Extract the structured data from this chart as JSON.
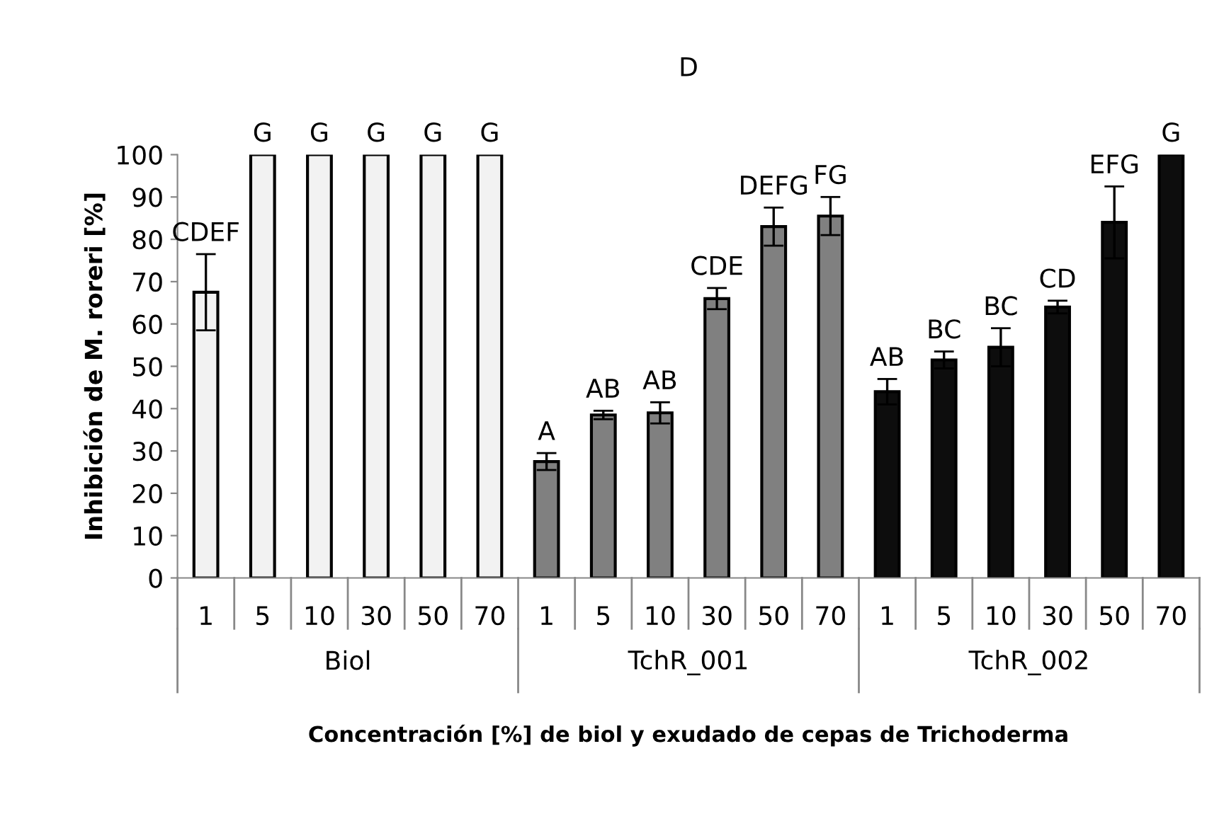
{
  "chart_data": {
    "type": "bar",
    "title": "D",
    "ylabel": "Inhibición de M. roreri [%]",
    "xlabel": "Concentración [%] de biol y exudado de cepas de Trichoderma",
    "categories": [
      "1",
      "5",
      "10",
      "30",
      "50",
      "70",
      "1",
      "5",
      "10",
      "30",
      "50",
      "70",
      "1",
      "5",
      "10",
      "30",
      "50",
      "70"
    ],
    "values": [
      67.5,
      100,
      100,
      100,
      100,
      100,
      27.5,
      38.5,
      39,
      66,
      83,
      85.5,
      44,
      51.5,
      54.5,
      64,
      84,
      100
    ],
    "colors": [
      "#f2f2f2",
      "#f2f2f2",
      "#f2f2f2",
      "#f2f2f2",
      "#f2f2f2",
      "#f2f2f2",
      "#808080",
      "#808080",
      "#808080",
      "#808080",
      "#808080",
      "#808080",
      "#0d0d0d",
      "#0d0d0d",
      "#0d0d0d",
      "#0d0d0d",
      "#0d0d0d",
      "#0d0d0d"
    ],
    "errors": [
      9,
      null,
      null,
      null,
      null,
      null,
      2,
      1,
      2.5,
      2.5,
      4.5,
      4.5,
      3,
      2,
      4.5,
      1.5,
      8.5,
      null
    ],
    "value_labels": [
      "CDEF",
      "G",
      "G",
      "G",
      "G",
      "G",
      "A",
      "AB",
      "AB",
      "CDE",
      "DEFG",
      "FG",
      "AB",
      "BC",
      "BC",
      "CD",
      "EFG",
      "G"
    ],
    "annotations": [
      "Biol",
      "TchR_001",
      "TchR_002"
    ],
    "ylim": [
      0,
      100
    ],
    "yticks": [
      0,
      10,
      20,
      30,
      40,
      50,
      60,
      70,
      80,
      90,
      100
    ],
    "grid": false
  }
}
